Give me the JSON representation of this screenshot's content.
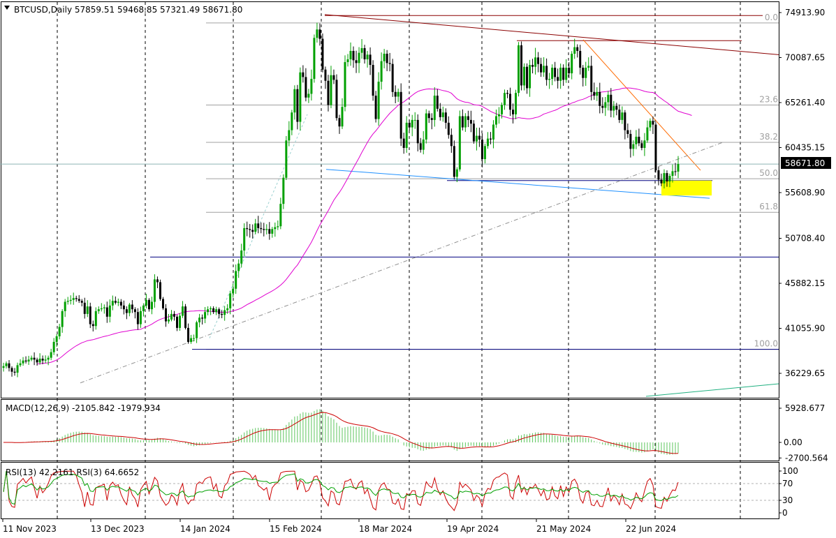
{
  "header": {
    "symbol_line": "BTCUSD,Daily  57859.51 59468.85 57321.49 58671.80"
  },
  "current_price": "58671.80",
  "colors": {
    "up_candle": "#00a000",
    "down_candle": "#000000",
    "ma": "#e000d0",
    "macd_hist": "#5cc55c",
    "macd_signal": "#cc0000",
    "rsi13": "#cc0000",
    "rsi3": "#00a000",
    "h_lines": "#000080",
    "trend_upper": "#8b0000",
    "trend_lower": "#1e90ff",
    "trend_desc": "#ff6a00",
    "zone": "#ffff00",
    "fib": "#a0a0a0"
  },
  "chart_data": [
    {
      "type": "candlestick",
      "title": "BTCUSD,Daily",
      "ohlc_last": {
        "open": 57859.51,
        "high": 59468.85,
        "low": 57321.49,
        "close": 58671.8
      },
      "x_tick_labels": [
        "11 Nov 2023",
        "13 Dec 2023",
        "14 Jan 2024",
        "15 Feb 2024",
        "18 Mar 2024",
        "19 Apr 2024",
        "21 May 2024",
        "22 Jun 2024"
      ],
      "y_tick_labels": [
        "74913.90",
        "70087.65",
        "65261.40",
        "60435.15",
        "55608.90",
        "50708.40",
        "45882.15",
        "41055.90",
        "36229.65"
      ],
      "ylim": [
        33600,
        76600
      ],
      "grid": "vertical dotted",
      "series": [
        {
          "name": "price",
          "closes": [
            37000,
            37300,
            36800,
            36400,
            36300,
            37100,
            37300,
            37600,
            37500,
            37700,
            37900,
            37700,
            37400,
            37800,
            37600,
            37700,
            37900,
            38500,
            39600,
            40200,
            41200,
            42900,
            43900,
            44000,
            44100,
            44300,
            44200,
            44000,
            43800,
            42600,
            43400,
            41500,
            41300,
            42900,
            43100,
            43200,
            43300,
            42300,
            43500,
            44000,
            43800,
            43900,
            43500,
            43100,
            42700,
            43600,
            43100,
            42800,
            41500,
            42900,
            43500,
            44100,
            43100,
            43900,
            46300,
            46000,
            44200,
            43200,
            41800,
            42000,
            42600,
            42300,
            41100,
            42400,
            43400,
            41100,
            39600,
            40000,
            40000,
            41700,
            42200,
            42100,
            42800,
            43100,
            43200,
            42800,
            43100,
            42600,
            42500,
            43000,
            43200,
            44800,
            45300,
            47200,
            48000,
            49400,
            51800,
            51700,
            51600,
            51400,
            52300,
            51800,
            51700,
            51600,
            51700,
            51200,
            51700,
            51900,
            52000,
            54400,
            57200,
            61200,
            62300,
            64200,
            66700,
            63200,
            68500,
            68000,
            65800,
            66200,
            67800,
            72200,
            73100,
            72100,
            68800,
            67600,
            65000,
            68200,
            67700,
            63600,
            62700,
            64800,
            69600,
            69900,
            70800,
            69800,
            69500,
            70600,
            71100,
            69900,
            70400,
            69300,
            66000,
            63500,
            67500,
            69700,
            70500,
            69500,
            69400,
            66400,
            65900,
            66400,
            61400,
            60400,
            63100,
            62600,
            63400,
            63400,
            60900,
            60200,
            61300,
            64100,
            63600,
            63400,
            66000,
            64600,
            63700,
            64200,
            63100,
            61800,
            60600,
            57300,
            58100,
            63800,
            62600,
            63800,
            63400,
            63000,
            61100,
            61700,
            61300,
            59200,
            60600,
            61400,
            61300,
            62900,
            63800,
            64000,
            65000,
            66300,
            66200,
            64500,
            64000,
            66300,
            71400,
            67100,
            69100,
            66800,
            69300,
            69100,
            70100,
            69400,
            68500,
            69200,
            67700,
            67800,
            69000,
            68000,
            67600,
            69000,
            67700,
            69000,
            68400,
            70500,
            71200,
            70800,
            69000,
            67900,
            69000,
            69200,
            66400,
            66000,
            66400,
            64900,
            64700,
            65300,
            66100,
            64400,
            64900,
            64500,
            63400,
            64200,
            62300,
            61900,
            60300,
            60800,
            61600,
            60900,
            60400,
            61200,
            62600,
            63300,
            62900,
            58000,
            57000,
            56600,
            57700,
            56800,
            57400,
            57900,
            57859,
            58671.8
          ],
          "note": "approximate daily closes read from the chart"
        },
        {
          "name": "moving average",
          "values_note": "magenta smoothed line"
        }
      ],
      "fibonacci": {
        "levels_label": [
          "0.0",
          "23.6",
          "38.2",
          "50.0",
          "61.8",
          "100.0"
        ],
        "levels_price": [
          73800,
          65000,
          61000,
          57100,
          53500,
          38800
        ]
      },
      "horizontal_levels": [
        48700,
        38800,
        56900
      ]
    },
    {
      "type": "bar",
      "title": "MACD(12,26,9) -2105.842 -1979.934",
      "y_tick_labels": [
        "5928.677",
        "0.00",
        "-2700.564"
      ],
      "ylim": [
        -2850,
        6200
      ],
      "series": [
        {
          "name": "MACD",
          "values_note": "histogram of MACD main line, follows price momentum"
        },
        {
          "name": "Signal",
          "last": -1979.934
        }
      ]
    },
    {
      "type": "line",
      "title": "RSI(13) 42.2161  RSI(3) 64.6652",
      "y_tick_labels": [
        "100",
        "70",
        "30",
        "0"
      ],
      "ylim": [
        0,
        100
      ],
      "series": [
        {
          "name": "RSI(13)",
          "last": 42.2161
        },
        {
          "name": "RSI(3)",
          "last": 64.6652
        }
      ]
    }
  ]
}
